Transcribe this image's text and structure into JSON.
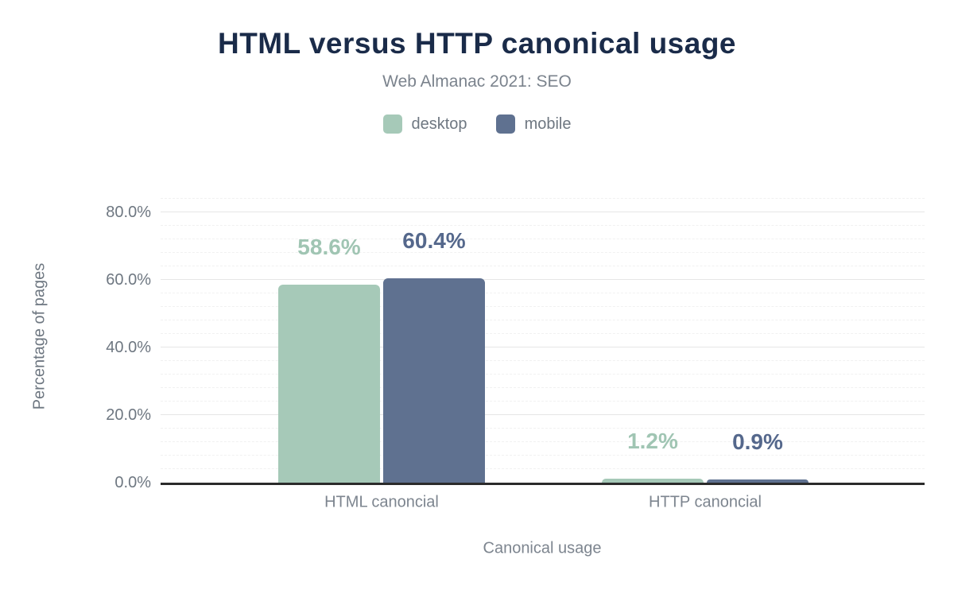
{
  "title": "HTML versus HTTP canonical usage",
  "subtitle": "Web Almanac 2021: SEO",
  "legend": {
    "items": [
      {
        "label": "desktop",
        "color": "#a6c9b8"
      },
      {
        "label": "mobile",
        "color": "#5f7190"
      }
    ]
  },
  "chart_data": {
    "type": "bar",
    "title": "HTML versus HTTP canonical usage",
    "subtitle": "Web Almanac 2021: SEO",
    "categories": [
      "HTML canoncial",
      "HTTP canoncial"
    ],
    "series": [
      {
        "name": "desktop",
        "color": "#a6c9b8",
        "label_color": "#a0c5b3",
        "values": [
          58.6,
          1.2
        ]
      },
      {
        "name": "mobile",
        "color": "#5f7190",
        "label_color": "#55688c",
        "values": [
          60.4,
          0.9
        ]
      }
    ],
    "xlabel": "Canonical usage",
    "ylabel": "Percentage of pages",
    "y_ticks": [
      {
        "value": 0,
        "label": "0.0%"
      },
      {
        "value": 20,
        "label": "20.0%"
      },
      {
        "value": 40,
        "label": "40.0%"
      },
      {
        "value": 60,
        "label": "60.0%"
      },
      {
        "value": 80,
        "label": "80.0%"
      }
    ],
    "ylim": [
      0,
      86.4
    ],
    "grid": {
      "minor_step": 4,
      "major_step": 20,
      "legend_position": "top"
    },
    "colors": {
      "title_text": "#1a2b49",
      "axis_text": "#6e7781",
      "axis_line": "#2b2b2b",
      "grid_major": "#e6e6e6",
      "grid_minor": "#f1f1f1"
    }
  }
}
